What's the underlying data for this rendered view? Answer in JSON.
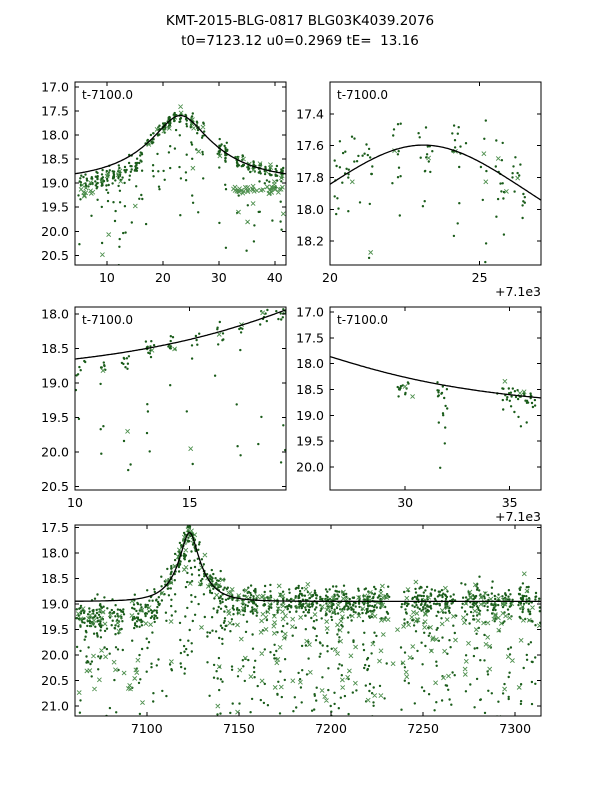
{
  "figure": {
    "title": "KMT-2015-BLG-0817 BLG03K4039.2076",
    "subtitle": "t0=7123.12 u0=0.2969 tE=  13.16"
  },
  "chart_data": {
    "type": "scatter",
    "title": "KMT-2015-BLG-0817 BLG03K4039.2076",
    "subtitle": "t0=7123.12 u0=0.2969 tE=  13.16",
    "description": "Gravitational microlensing light curve (magnitude vs time HJD-2450000) with Paczynski model fit; four zoom panels and one full-range panel; green dots are data, light-green x are flagged points, black line is the model.",
    "model": {
      "name": "paczynski-point-lens",
      "t0": 7123.12,
      "u0": 0.2969,
      "tE": 13.16,
      "baseline_mag": 18.95
    },
    "style": {
      "dot_color": "#1a5c1a",
      "x_color": "#4d8f4d",
      "line_color": "#000000",
      "axis_color": "#000000",
      "bg": "#ffffff"
    },
    "panels": [
      {
        "name": "zoom-rise-peak-fall",
        "inner_label": "t-7100.0",
        "x_offset_label": null,
        "t_offset": 7100,
        "xlim": [
          4.3,
          42.0
        ],
        "ylim": [
          16.9,
          20.7
        ],
        "xticks": {
          "vals": [
            10,
            20,
            30,
            40
          ],
          "labels": [
            "10",
            "20",
            "30",
            "40"
          ]
        },
        "yticks": {
          "vals": [
            17.0,
            17.5,
            18.0,
            18.5,
            19.0,
            19.5,
            20.0,
            20.5
          ],
          "labels": [
            "17.0",
            "17.5",
            "18.0",
            "18.5",
            "19.0",
            "19.5",
            "20.0",
            "20.5"
          ]
        },
        "seed": 7,
        "scatter": {
          "nights": [
            5.2,
            6.2,
            7.2,
            8.2,
            9.2,
            10.2,
            11.2,
            12.2,
            13.2,
            14.2,
            15.2,
            16.2,
            17.2,
            18.2,
            19.2,
            20.2,
            21.2,
            22.2,
            23.2,
            24.2,
            25.2,
            26.2,
            27.2,
            30.2,
            31.2,
            33.3,
            34.3,
            35.3,
            36.3,
            37.3,
            38.3,
            39.3,
            40.3,
            41.3
          ],
          "n": [
            8,
            20
          ],
          "x_sigma": 0.15,
          "sigma": 0.09,
          "tail_p": 0.28,
          "tail_max": 1.9,
          "x_frac": 0.08,
          "dy_rule": {
            "before_x": 17.0,
            "dy": 0.25,
            "after_dy": 0.0
          }
        },
        "x_bands": [
          {
            "x0": 32.6,
            "x1": 41.6,
            "y": 19.13,
            "ysig": 0.05,
            "n": 42
          },
          {
            "x0": 4.6,
            "x1": 7.6,
            "y": 19.2,
            "ysig": 0.1,
            "n": 10
          }
        ]
      },
      {
        "name": "zoom-peak",
        "inner_label": "t-7100.0",
        "x_offset_label": "+7.1e3",
        "t_offset": 7100,
        "xlim": [
          20.0,
          27.05
        ],
        "ylim": [
          17.2,
          18.35
        ],
        "xticks": {
          "vals": [
            20,
            25
          ],
          "labels": [
            "20",
            "25"
          ]
        },
        "yticks": {
          "vals": [
            17.4,
            17.6,
            17.8,
            18.0,
            18.2
          ],
          "labels": [
            "17.4",
            "17.6",
            "17.8",
            "18.0",
            "18.2"
          ]
        },
        "seed": 11,
        "scatter": {
          "nights": [
            20.3,
            20.75,
            21.3,
            22.3,
            23.25,
            24.2,
            25.2,
            25.7,
            26.3
          ],
          "n": [
            9,
            17
          ],
          "x_sigma": 0.15,
          "sigma": 0.12,
          "tail_p": 0.3,
          "tail_max": 0.8,
          "x_frac": 0.08
        },
        "x_bands": []
      },
      {
        "name": "zoom-rise",
        "inner_label": "t-7100.0",
        "x_offset_label": null,
        "t_offset": 7100,
        "xlim": [
          10.0,
          19.2
        ],
        "ylim": [
          17.9,
          20.55
        ],
        "xticks": {
          "vals": [
            10,
            15
          ],
          "labels": [
            "10",
            "15"
          ]
        },
        "yticks": {
          "vals": [
            18.0,
            18.5,
            19.0,
            19.5,
            20.0,
            20.5
          ],
          "labels": [
            "18.0",
            "18.5",
            "19.0",
            "19.5",
            "20.0",
            "20.5"
          ]
        },
        "seed": 23,
        "scatter": {
          "nights": [
            10.2,
            11.2,
            12.25,
            13.2,
            14.2,
            15.2,
            16.25,
            17.2,
            18.2,
            19.0
          ],
          "n": [
            9,
            17
          ],
          "x_sigma": 0.12,
          "sigma": 0.08,
          "tail_p": 0.3,
          "tail_max": 2.2,
          "x_frac": 0.08,
          "dy_rule": {
            "before_x": 13.0,
            "dy": 0.15,
            "after_dy": 0.0
          }
        },
        "x_bands": []
      },
      {
        "name": "zoom-fall",
        "inner_label": "t-7100.0",
        "x_offset_label": "+7.1e3",
        "t_offset": 7100,
        "xlim": [
          26.4,
          36.5
        ],
        "ylim": [
          16.9,
          20.45
        ],
        "xticks": {
          "vals": [
            30,
            35
          ],
          "labels": [
            "30",
            "35"
          ]
        },
        "yticks": {
          "vals": [
            17.0,
            17.5,
            18.0,
            18.5,
            19.0,
            19.5,
            20.0
          ],
          "labels": [
            "17.0",
            "17.5",
            "18.0",
            "18.5",
            "19.0",
            "19.5",
            "20.0"
          ]
        },
        "seed": 5,
        "scatter": {
          "nights": [
            {
              "x": 29.7,
              "n": 7,
              "dy": 0.18,
              "tail": 0.25
            },
            {
              "x": 30.0,
              "n": 8,
              "dy": 0.18,
              "tail": 0.3
            },
            {
              "x": 31.6,
              "n": 9,
              "dy": 0.15,
              "tail": 1.7
            },
            {
              "x": 31.9,
              "n": 10,
              "dy": 0.15,
              "tail": 1.9
            },
            {
              "x": 34.7,
              "n": 8,
              "dy": 0.0,
              "tail": 0.5
            },
            {
              "x": 35.05,
              "n": 9,
              "dy": 0.0,
              "tail": 0.35
            },
            {
              "x": 35.4,
              "n": 10,
              "dy": 0.0,
              "tail": 0.6
            },
            {
              "x": 35.75,
              "n": 9,
              "dy": 0.0,
              "tail": 0.4
            },
            {
              "x": 36.1,
              "n": 8,
              "dy": 0.05,
              "tail": 0.3
            }
          ],
          "n": [
            6,
            10
          ],
          "x_sigma": 0.1,
          "sigma": 0.09,
          "tail_p": 0.35,
          "tail_max": 1.6,
          "x_frac": 0.1
        },
        "x_bands": []
      },
      {
        "name": "full-light-curve",
        "inner_label": null,
        "x_offset_label": null,
        "t_offset": 0,
        "xlim": [
          7061,
          7314
        ],
        "ylim": [
          17.45,
          21.2
        ],
        "xticks": {
          "vals": [
            7100,
            7150,
            7200,
            7250,
            7300
          ],
          "labels": [
            "7100",
            "7150",
            "7200",
            "7250",
            "7300"
          ]
        },
        "yticks": {
          "vals": [
            17.5,
            18.0,
            18.5,
            19.0,
            19.5,
            20.0,
            20.5,
            21.0
          ],
          "labels": [
            "17.5",
            "18.0",
            "18.5",
            "19.0",
            "19.5",
            "20.0",
            "20.5",
            "21.0"
          ]
        },
        "seed": 97,
        "scatter": {
          "night_range": [
            7062,
            7313
          ],
          "skip_p": 0.18,
          "gaps": [
            [
              7088,
              7091
            ],
            [
              7232,
              7237
            ],
            [
              7268,
              7270
            ]
          ],
          "n": [
            4,
            12
          ],
          "x_sigma": 0.25,
          "sigma": 0.16,
          "tail_p": 0.38,
          "tail_max": 2.4,
          "x_frac": 0.12,
          "dy_rule": {
            "before_x": 7108,
            "dy": 0.3,
            "after_dy": 0.0
          },
          "boost": {
            "x0": 7113,
            "x1": 7127,
            "mult": 1.8
          }
        },
        "x_bands": [
          {
            "x0": 7140,
            "x1": 7310,
            "y": 19.3,
            "ysig": 0.12,
            "n": 55
          },
          {
            "x0": 7150,
            "x1": 7300,
            "y": 20.2,
            "ysig": 0.35,
            "n": 38
          },
          {
            "x0": 7063,
            "x1": 7100,
            "y": 20.3,
            "ysig": 0.25,
            "n": 14
          }
        ]
      }
    ]
  }
}
